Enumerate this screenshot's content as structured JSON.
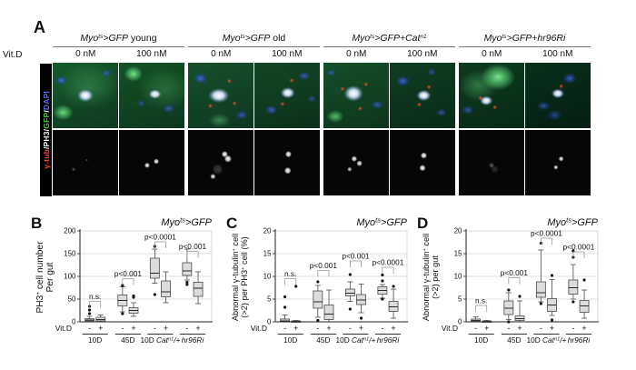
{
  "panel_a": {
    "label": "A",
    "row_label": "Vit.D",
    "channel_legend": [
      {
        "t": "γ-tub",
        "c": "#ff4438"
      },
      {
        "t": "/",
        "c": "#ffffff"
      },
      {
        "t": "PH3",
        "c": "#ffffff"
      },
      {
        "t": "/",
        "c": "#ffffff"
      },
      {
        "t": "GFP",
        "c": "#3ed43e"
      },
      {
        "t": "/",
        "c": "#ffffff"
      },
      {
        "t": "DAPI",
        "c": "#5577ff"
      }
    ],
    "groups": [
      {
        "title": [
          {
            "t": "Myo",
            "i": 1
          },
          {
            "t": "ts",
            "i": 1,
            "s": 1
          },
          {
            "t": ">GFP",
            "i": 1
          },
          {
            "t": " young"
          }
        ],
        "doses": [
          "0 nM",
          "100 nM"
        ]
      },
      {
        "title": [
          {
            "t": "Myo",
            "i": 1
          },
          {
            "t": "ts",
            "i": 1,
            "s": 1
          },
          {
            "t": ">GFP",
            "i": 1
          },
          {
            "t": " old"
          }
        ],
        "doses": [
          "0 nM",
          "100 nM"
        ]
      },
      {
        "title": [
          {
            "t": "Myo",
            "i": 1
          },
          {
            "t": "ts",
            "i": 1,
            "s": 1
          },
          {
            "t": ">GFP+Cat",
            "i": 1
          },
          {
            "t": "n1",
            "i": 1,
            "s": 1
          }
        ],
        "doses": [
          "0 nM",
          "100 nM"
        ]
      },
      {
        "title": [
          {
            "t": "Myo",
            "i": 1
          },
          {
            "t": "ts",
            "i": 1,
            "s": 1
          },
          {
            "t": ">GFP+hr96Ri",
            "i": 1
          }
        ],
        "doses": [
          "0 nM",
          "100 nM"
        ]
      }
    ]
  },
  "colors": {
    "box_fill": "#dcdcdc",
    "box_stroke": "#4a4a4a",
    "median": "#2a2a2a",
    "outlier": "#161616",
    "grid": "#d4d4d4",
    "frame": "#c9c9c9",
    "axis": "#222222",
    "annotation_line": "#8a8a8a",
    "text": "#111111"
  },
  "chart_data": [
    {
      "type": "box",
      "panel": "B",
      "title": [
        {
          "t": "Myo",
          "i": 1
        },
        {
          "t": "ts",
          "i": 1,
          "s": 1
        },
        {
          "t": ">GFP",
          "i": 1
        }
      ],
      "ylabel_lines": [
        [
          {
            "t": "PH3"
          },
          {
            "t": "+",
            "s": 1
          },
          {
            "t": " cell number"
          }
        ],
        [
          {
            "t": "Per gut"
          }
        ]
      ],
      "ylim": [
        0,
        200
      ],
      "yticks": [
        0,
        50,
        100,
        150,
        200
      ],
      "x_row_label": "Vit.D",
      "dose_symbols": [
        "-",
        "+"
      ],
      "groups": [
        {
          "label": [
            {
              "t": "10D"
            }
          ],
          "annotation": "n.s.",
          "ann_y": 45,
          "boxes": [
            {
              "lo": 0,
              "q1": 2,
              "med": 4,
              "q3": 7,
              "hi": 12,
              "outliers": [
                18,
                26,
                34
              ]
            },
            {
              "lo": 0,
              "q1": 2,
              "med": 5,
              "q3": 10,
              "hi": 15,
              "outliers": []
            }
          ]
        },
        {
          "label": [
            {
              "t": "45D"
            }
          ],
          "annotation": "p<0.001",
          "ann_y": 95,
          "boxes": [
            {
              "lo": 22,
              "q1": 35,
              "med": 47,
              "q3": 59,
              "hi": 77,
              "outliers": [
                18,
                80
              ]
            },
            {
              "lo": 12,
              "q1": 19,
              "med": 25,
              "q3": 31,
              "hi": 42,
              "outliers": [
                54,
                57
              ]
            }
          ]
        },
        {
          "label": [
            {
              "t": "10D "
            },
            {
              "t": "Cat",
              "i": 1
            },
            {
              "t": "n1",
              "i": 1,
              "s": 1
            },
            {
              "t": "/+",
              "i": 1
            }
          ],
          "annotation": "p<0.0001",
          "ann_y": 176,
          "boxes": [
            {
              "lo": 85,
              "q1": 96,
              "med": 107,
              "q3": 140,
              "hi": 160,
              "outliers": [
                60,
                166
              ]
            },
            {
              "lo": 42,
              "q1": 55,
              "med": 66,
              "q3": 90,
              "hi": 110,
              "outliers": []
            }
          ]
        },
        {
          "label": [
            {
              "t": "hr96Ri",
              "i": 1
            }
          ],
          "annotation": "p<0.001",
          "ann_y": 155,
          "boxes": [
            {
              "lo": 92,
              "q1": 102,
              "med": 112,
              "q3": 130,
              "hi": 160,
              "outliers": [
                82,
                87
              ]
            },
            {
              "lo": 40,
              "q1": 56,
              "med": 74,
              "q3": 87,
              "hi": 110,
              "outliers": []
            }
          ]
        }
      ]
    },
    {
      "type": "box",
      "panel": "C",
      "title": [
        {
          "t": "Myo",
          "i": 1
        },
        {
          "t": "ts",
          "i": 1,
          "s": 1
        },
        {
          "t": ">GFP",
          "i": 1
        }
      ],
      "ylabel_lines": [
        [
          {
            "t": "Abnormal γ-tubulin"
          },
          {
            "t": "+",
            "s": 1
          },
          {
            "t": " cell"
          }
        ],
        [
          {
            "t": "(>2) per PH3"
          },
          {
            "t": "+",
            "s": 1
          },
          {
            "t": " cell (%)"
          }
        ]
      ],
      "ylim": [
        0,
        20
      ],
      "yticks": [
        0,
        5,
        10,
        15,
        20
      ],
      "x_row_label": "Vit.D",
      "dose_symbols": [
        "-",
        "+"
      ],
      "groups": [
        {
          "label": [
            {
              "t": "10D"
            }
          ],
          "annotation": "n.s.",
          "ann_y": 9.5,
          "boxes": [
            {
              "lo": 0,
              "q1": 0,
              "med": 0.2,
              "q3": 0.6,
              "hi": 1.5,
              "outliers": [
                3.2,
                5.5
              ]
            },
            {
              "lo": 0,
              "q1": 0,
              "med": 0.05,
              "q3": 0.15,
              "hi": 0.3,
              "outliers": [
                7.8
              ]
            }
          ]
        },
        {
          "label": [
            {
              "t": "45D"
            }
          ],
          "annotation": "p<0.001",
          "ann_y": 11.3,
          "boxes": [
            {
              "lo": 1,
              "q1": 3,
              "med": 4.4,
              "q3": 6.8,
              "hi": 8,
              "outliers": [
                0.3,
                8.8
              ]
            },
            {
              "lo": 0,
              "q1": 0.5,
              "med": 1.7,
              "q3": 3.7,
              "hi": 7,
              "outliers": []
            }
          ]
        },
        {
          "label": [
            {
              "t": "10D "
            },
            {
              "t": "Cat",
              "i": 1
            },
            {
              "t": "n1",
              "i": 1,
              "s": 1
            },
            {
              "t": "/+",
              "i": 1
            }
          ],
          "annotation": "p<0.001",
          "ann_y": 13.4,
          "boxes": [
            {
              "lo": 4.5,
              "q1": 5.7,
              "med": 6.3,
              "q3": 7.2,
              "hi": 8.8,
              "outliers": [
                2.8,
                10.4
              ]
            },
            {
              "lo": 2,
              "q1": 3.8,
              "med": 4.8,
              "q3": 6,
              "hi": 8.3,
              "outliers": [
                0.8
              ]
            }
          ]
        },
        {
          "label": [
            {
              "t": "hr96Ri",
              "i": 1
            }
          ],
          "annotation": "p<0.0001",
          "ann_y": 12,
          "boxes": [
            {
              "lo": 5.2,
              "q1": 6.1,
              "med": 6.9,
              "q3": 7.7,
              "hi": 8.2,
              "outliers": [
                5,
                9,
                10.3
              ]
            },
            {
              "lo": 0.8,
              "q1": 2.3,
              "med": 3.3,
              "q3": 4.5,
              "hi": 7.2,
              "outliers": [
                7.8
              ]
            }
          ]
        }
      ]
    },
    {
      "type": "box",
      "panel": "D",
      "title": [
        {
          "t": "Myo",
          "i": 1
        },
        {
          "t": "ts",
          "i": 1,
          "s": 1
        },
        {
          "t": ">GFP",
          "i": 1
        }
      ],
      "ylabel_lines": [
        [
          {
            "t": "Abnormal γ-tubulin"
          },
          {
            "t": "+",
            "s": 1
          },
          {
            "t": " cell"
          }
        ],
        [
          {
            "t": "(>2) per gut"
          }
        ]
      ],
      "ylim": [
        0,
        20
      ],
      "yticks": [
        0,
        5,
        10,
        15,
        20
      ],
      "x_row_label": "Vit.D",
      "dose_symbols": [
        "-",
        "+"
      ],
      "groups": [
        {
          "label": [
            {
              "t": "10D"
            }
          ],
          "annotation": "n.s.",
          "ann_y": 3.6,
          "boxes": [
            {
              "lo": 0,
              "q1": 0.1,
              "med": 0.3,
              "q3": 0.6,
              "hi": 1.1,
              "outliers": []
            },
            {
              "lo": 0,
              "q1": 0,
              "med": 0.05,
              "q3": 0.15,
              "hi": 0.3,
              "outliers": []
            }
          ]
        },
        {
          "label": [
            {
              "t": "45D"
            }
          ],
          "annotation": "p<0.001",
          "ann_y": 9.7,
          "boxes": [
            {
              "lo": 0.5,
              "q1": 1.6,
              "med": 3,
              "q3": 4.6,
              "hi": 6.4,
              "outliers": [
                0,
                7
              ]
            },
            {
              "lo": 0,
              "q1": 0.3,
              "med": 0.7,
              "q3": 1.3,
              "hi": 4.6,
              "outliers": [
                5.6
              ]
            }
          ]
        },
        {
          "label": [
            {
              "t": "10D "
            },
            {
              "t": "Cat",
              "i": 1
            },
            {
              "t": "n1",
              "i": 1,
              "s": 1
            },
            {
              "t": "/+",
              "i": 1
            }
          ],
          "annotation": "p<0.0001",
          "ann_y": 18.4,
          "boxes": [
            {
              "lo": 4.4,
              "q1": 5.4,
              "med": 6.4,
              "q3": 8.8,
              "hi": 15.8,
              "outliers": [
                4,
                17.3
              ]
            },
            {
              "lo": 1.4,
              "q1": 2.3,
              "med": 3.7,
              "q3": 5.1,
              "hi": 9.3,
              "outliers": [
                0.4,
                10.2
              ]
            }
          ]
        },
        {
          "label": [
            {
              "t": "hr96Ri",
              "i": 1
            }
          ],
          "annotation": "p<0.0001",
          "ann_y": 15.4,
          "boxes": [
            {
              "lo": 5,
              "q1": 6.1,
              "med": 7.5,
              "q3": 9.2,
              "hi": 12.6,
              "outliers": [
                4.4,
                14.2,
                15.6
              ]
            },
            {
              "lo": 0.8,
              "q1": 2.1,
              "med": 3.5,
              "q3": 4.7,
              "hi": 7,
              "outliers": [
                9.2
              ]
            }
          ]
        }
      ]
    }
  ]
}
